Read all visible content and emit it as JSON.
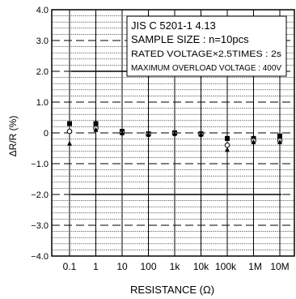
{
  "chart_data": {
    "type": "scatter",
    "xlabel": "RESISTANCE (Ω)",
    "ylabel": "ΔR/R (%)",
    "ylim": [
      -4.0,
      4.0
    ],
    "y_ticks": [
      "4.0",
      "3.0",
      "2.0",
      "1.0",
      "0",
      "−1.0",
      "−2.0",
      "−3.0",
      "−4.0"
    ],
    "y_tick_values": [
      4,
      3,
      2,
      1,
      0,
      -1,
      -2,
      -3,
      -4
    ],
    "x_scale": "log",
    "x_ticks": [
      "0.1",
      "1",
      "10",
      "100",
      "1k",
      "10k",
      "100k",
      "1M",
      "10M"
    ],
    "x_tick_values": [
      0.1,
      1,
      10,
      100,
      1000,
      10000,
      100000,
      1000000,
      10000000
    ],
    "limit_lines": [
      2.0,
      -2.0
    ],
    "grid": true,
    "annotation_lines": [
      "JIS C 5201-1 4.13",
      "SAMPLE SIZE : n=10pcs",
      "RATED VOLTAGE×2.5TIMES : 2s",
      "MAXIMUM OVERLOAD VOLTAGE : 400V"
    ],
    "legend_placement": "top-right",
    "series": [
      {
        "marker": "square",
        "x": [
          0.1,
          1,
          10,
          100,
          1000,
          10000,
          100000,
          1000000,
          10000000
        ],
        "values": [
          0.3,
          0.3,
          0.05,
          -0.03,
          0.0,
          -0.03,
          -0.18,
          -0.18,
          -0.1
        ]
      },
      {
        "marker": "open-circle",
        "x": [
          0.1,
          1,
          10,
          100,
          1000,
          10000,
          100000,
          1000000,
          10000000
        ],
        "values": [
          0.05,
          0.15,
          0.0,
          -0.05,
          -0.02,
          -0.05,
          -0.4,
          -0.25,
          -0.25
        ]
      },
      {
        "marker": "filled-triangle",
        "x": [
          0.1,
          1,
          10,
          100,
          1000,
          10000,
          100000,
          1000000,
          10000000
        ],
        "values": [
          -0.35,
          0.1,
          0.0,
          -0.05,
          -0.02,
          -0.05,
          -0.55,
          -0.3,
          -0.3
        ]
      }
    ]
  }
}
